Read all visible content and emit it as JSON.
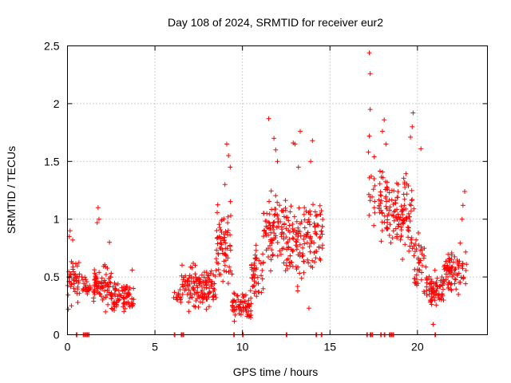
{
  "chart_data": {
    "type": "scatter",
    "title": "Day 108 of 2024, SRMTID for receiver eur2",
    "xlabel": "GPS time / hours",
    "ylabel": "SRMTID / TECUs",
    "xlim": [
      0,
      24
    ],
    "ylim": [
      0,
      2.5
    ],
    "x_ticks": [
      0,
      5,
      10,
      15,
      20
    ],
    "x_tick_labels": [
      "0",
      "5",
      "10",
      "15",
      "20"
    ],
    "y_ticks": [
      0,
      0.5,
      1,
      1.5,
      2,
      2.5
    ],
    "y_tick_labels": [
      "0",
      "0.5",
      "1",
      "1.5",
      "2",
      "2.5"
    ],
    "grid": true,
    "marker": "+",
    "series": [
      {
        "name": "SRMTID",
        "color": "#ff0000",
        "clusters": [
          {
            "x": [
              0.0,
              0.7
            ],
            "y_center": 0.45,
            "y_spread": 0.18,
            "count": 45,
            "outliers": [
              [
                0.1,
                0.85
              ],
              [
                0.15,
                0.9
              ],
              [
                0.3,
                0.82
              ],
              [
                0.05,
                0.22
              ]
            ]
          },
          {
            "x": [
              0.8,
              1.5
            ],
            "y_center": 0.4,
            "y_spread": 0.15,
            "count": 30,
            "outliers": []
          },
          {
            "x": [
              1.5,
              2.5
            ],
            "y_center": 0.45,
            "y_spread": 0.2,
            "count": 70,
            "outliers": [
              [
                1.75,
                1.1
              ],
              [
                1.8,
                1.0
              ],
              [
                1.7,
                0.97
              ],
              [
                2.4,
                0.8
              ]
            ]
          },
          {
            "x": [
              2.5,
              3.8
            ],
            "y_center": 0.33,
            "y_spread": 0.12,
            "count": 80,
            "outliers": [
              [
                3.7,
                0.56
              ]
            ]
          },
          {
            "x": [
              6.0,
              6.5
            ],
            "y_center": 0.33,
            "y_spread": 0.08,
            "count": 15,
            "outliers": []
          },
          {
            "x": [
              6.5,
              8.5
            ],
            "y_center": 0.4,
            "y_spread": 0.18,
            "count": 130,
            "outliers": [
              [
                7.3,
                0.6
              ]
            ]
          },
          {
            "x": [
              8.5,
              9.4
            ],
            "y_center": 0.75,
            "y_spread": 0.35,
            "count": 70,
            "outliers": [
              [
                9.1,
                1.65
              ],
              [
                9.2,
                1.55
              ],
              [
                9.3,
                1.45
              ],
              [
                9.0,
                1.3
              ]
            ]
          },
          {
            "x": [
              9.4,
              10.5
            ],
            "y_center": 0.25,
            "y_spread": 0.12,
            "count": 70,
            "outliers": []
          },
          {
            "x": [
              10.5,
              11.2
            ],
            "y_center": 0.55,
            "y_spread": 0.22,
            "count": 45,
            "outliers": []
          },
          {
            "x": [
              11.2,
              12.5
            ],
            "y_center": 0.9,
            "y_spread": 0.35,
            "count": 90,
            "outliers": [
              [
                11.5,
                1.87
              ],
              [
                11.8,
                1.7
              ],
              [
                11.9,
                1.6
              ],
              [
                12.0,
                1.5
              ]
            ]
          },
          {
            "x": [
              12.5,
              13.5
            ],
            "y_center": 0.8,
            "y_spread": 0.35,
            "count": 70,
            "outliers": [
              [
                12.9,
                1.66
              ],
              [
                13.0,
                1.65
              ],
              [
                13.3,
                1.76
              ],
              [
                13.2,
                1.45
              ]
            ]
          },
          {
            "x": [
              13.5,
              14.6
            ],
            "y_center": 0.85,
            "y_spread": 0.35,
            "count": 70,
            "outliers": [
              [
                14.0,
                1.68
              ],
              [
                13.9,
                1.5
              ],
              [
                13.8,
                0.23
              ]
            ]
          },
          {
            "x": [
              17.1,
              17.6
            ],
            "y_center": 1.2,
            "y_spread": 0.3,
            "count": 15,
            "outliers": [
              [
                17.25,
                2.44
              ],
              [
                17.3,
                2.26
              ],
              [
                17.3,
                1.95
              ],
              [
                17.25,
                1.72
              ],
              [
                17.2,
                1.58
              ]
            ]
          },
          {
            "x": [
              17.8,
              18.6
            ],
            "y_center": 1.1,
            "y_spread": 0.35,
            "count": 55,
            "outliers": [
              [
                18.1,
                1.86
              ],
              [
                18.0,
                1.76
              ],
              [
                18.2,
                1.65
              ]
            ]
          },
          {
            "x": [
              18.6,
              19.8
            ],
            "y_center": 1.05,
            "y_spread": 0.35,
            "count": 90,
            "outliers": [
              [
                19.75,
                1.92
              ],
              [
                19.7,
                1.8
              ],
              [
                19.6,
                1.71
              ]
            ]
          },
          {
            "x": [
              19.8,
              20.5
            ],
            "y_center": 0.6,
            "y_spread": 0.25,
            "count": 40,
            "outliers": [
              [
                20.2,
                1.61
              ]
            ]
          },
          {
            "x": [
              20.5,
              21.5
            ],
            "y_center": 0.38,
            "y_spread": 0.15,
            "count": 70,
            "outliers": [
              [
                20.9,
                0.09
              ]
            ]
          },
          {
            "x": [
              21.5,
              22.8
            ],
            "y_center": 0.55,
            "y_spread": 0.2,
            "count": 80,
            "outliers": [
              [
                22.7,
                1.24
              ],
              [
                22.6,
                1.12
              ],
              [
                22.55,
                1.0
              ]
            ]
          }
        ],
        "zero_points_x": [
          0.5,
          0.9,
          1.0,
          1.1,
          1.2,
          6.1,
          6.5,
          6.6,
          9.5,
          10.0,
          12.5,
          14.2,
          14.5,
          17.1,
          17.3,
          17.4,
          17.9,
          18.1,
          18.4,
          18.5,
          18.6,
          21.0
        ]
      }
    ]
  }
}
